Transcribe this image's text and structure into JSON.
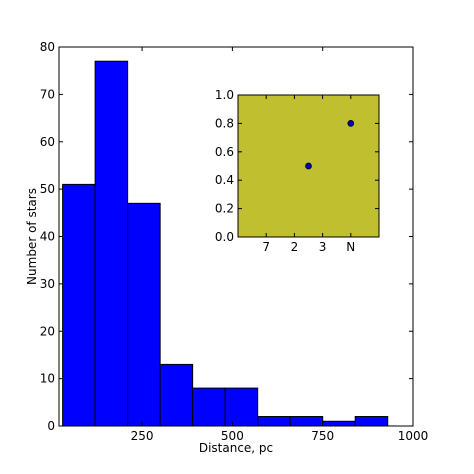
{
  "colors": {
    "bar_fill": "#0000ff",
    "bar_edge": "#000000",
    "inset_face": "#bfbf2f",
    "marker_fill": "#0000bf",
    "background": "#ffffff"
  },
  "chart_data": [
    {
      "type": "bar",
      "subtype": "histogram",
      "xlabel": "Distance, pc",
      "ylabel": "Number of stars",
      "xlim": [
        20,
        1000
      ],
      "ylim": [
        0,
        80
      ],
      "grid": false,
      "bin_edges": [
        30,
        120,
        210,
        300,
        390,
        480,
        570,
        660,
        750,
        840,
        930
      ],
      "values": [
        51,
        77,
        47,
        13,
        8,
        8,
        2,
        2,
        1,
        2
      ],
      "x_ticks": [
        250,
        500,
        750,
        1000
      ],
      "x_tick_labels": [
        "250",
        "500",
        "750",
        "1000"
      ],
      "y_ticks": [
        0,
        10,
        20,
        30,
        40,
        50,
        60,
        70,
        80
      ],
      "y_tick_labels": [
        "0",
        "10",
        "20",
        "30",
        "40",
        "50",
        "60",
        "70",
        "80"
      ]
    },
    {
      "type": "scatter",
      "inset": true,
      "x_categories": [
        "7",
        "2",
        "3",
        "N"
      ],
      "xlim": [
        0,
        5
      ],
      "ylim": [
        0,
        1
      ],
      "grid": false,
      "points": [
        {
          "x": 2.5,
          "y": 0.5
        },
        {
          "x": 4,
          "y": 0.8
        }
      ],
      "x_ticks": [
        1,
        2,
        3,
        4
      ],
      "x_tick_labels": [
        "7",
        "2",
        "3",
        "N"
      ],
      "y_ticks": [
        0,
        0.2,
        0.4,
        0.6,
        0.8,
        1.0
      ],
      "y_tick_labels": [
        "0.0",
        "0.2",
        "0.4",
        "0.6",
        "0.8",
        "1.0"
      ]
    }
  ]
}
